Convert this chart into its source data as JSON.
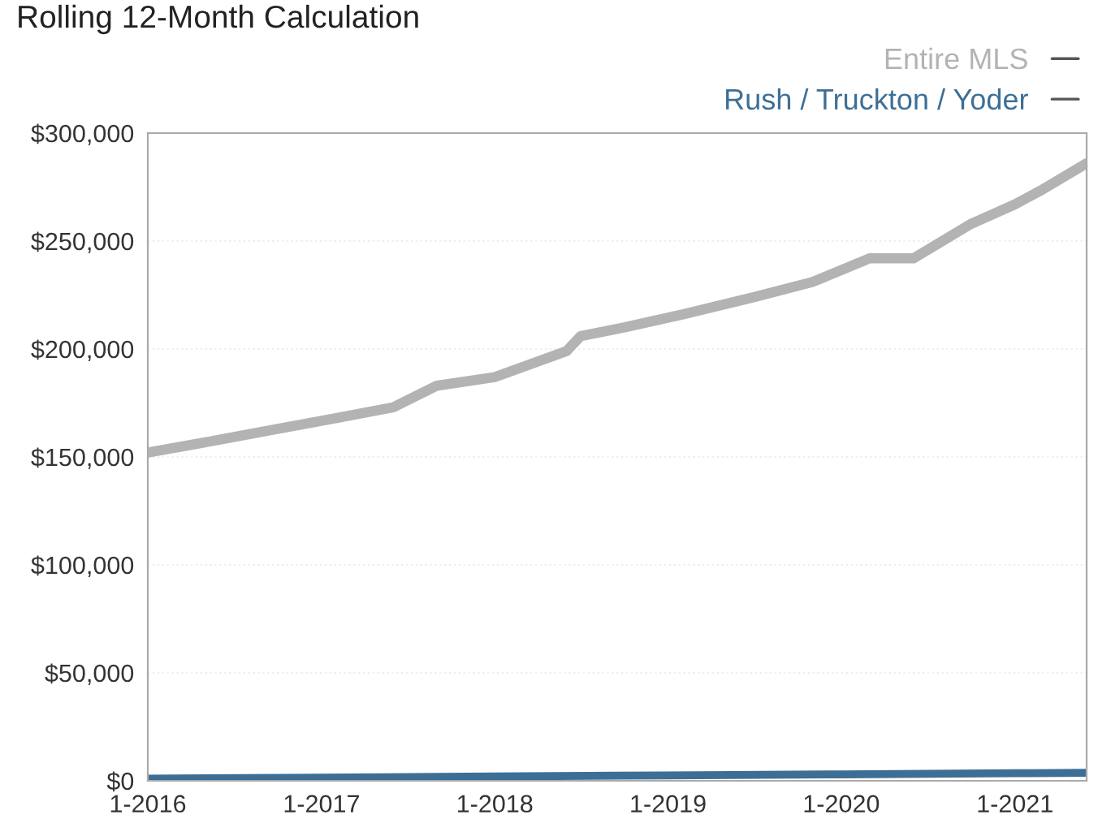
{
  "chart_data": {
    "type": "line",
    "title": "Rolling 12-Month Calculation",
    "xlim": [
      "2016-01",
      "2021-06"
    ],
    "xticks": [
      {
        "value": "2016-01",
        "label": "1-2016"
      },
      {
        "value": "2017-01",
        "label": "1-2017"
      },
      {
        "value": "2018-01",
        "label": "1-2018"
      },
      {
        "value": "2019-01",
        "label": "1-2019"
      },
      {
        "value": "2020-01",
        "label": "1-2020"
      },
      {
        "value": "2021-01",
        "label": "1-2021"
      }
    ],
    "ylim": [
      0,
      300000
    ],
    "yticks": [
      {
        "value": 0,
        "label": "$0"
      },
      {
        "value": 50000,
        "label": "$50,000"
      },
      {
        "value": 100000,
        "label": "$100,000"
      },
      {
        "value": 150000,
        "label": "$150,000"
      },
      {
        "value": 200000,
        "label": "$200,000"
      },
      {
        "value": 250000,
        "label": "$250,000"
      },
      {
        "value": 300000,
        "label": "$300,000"
      }
    ],
    "grid": "y",
    "legend": "top right",
    "marker": "none",
    "line_style": "solid",
    "series": [
      {
        "name": "Entire MLS",
        "color": "#b3b3b3",
        "x": [
          "2016-01",
          "2016-06",
          "2016-10",
          "2017-02",
          "2017-06",
          "2017-09",
          "2018-01",
          "2018-06",
          "2018-07",
          "2018-10",
          "2019-02",
          "2019-07",
          "2019-11",
          "2020-03",
          "2020-06",
          "2020-10",
          "2021-01",
          "2021-03",
          "2021-06"
        ],
        "values": [
          152000,
          158000,
          163000,
          168000,
          173000,
          183000,
          187000,
          199000,
          206000,
          210000,
          216000,
          224000,
          231000,
          242000,
          242000,
          258000,
          267000,
          274000,
          286000
        ]
      },
      {
        "name": "Rush / Truckton / Yoder",
        "color": "#3d6f96",
        "x": [
          "2016-01",
          "2017-01",
          "2018-01",
          "2019-01",
          "2020-01",
          "2021-01",
          "2021-06"
        ],
        "values": [
          1000,
          1500,
          2000,
          2500,
          3000,
          3500,
          3700
        ]
      }
    ]
  }
}
